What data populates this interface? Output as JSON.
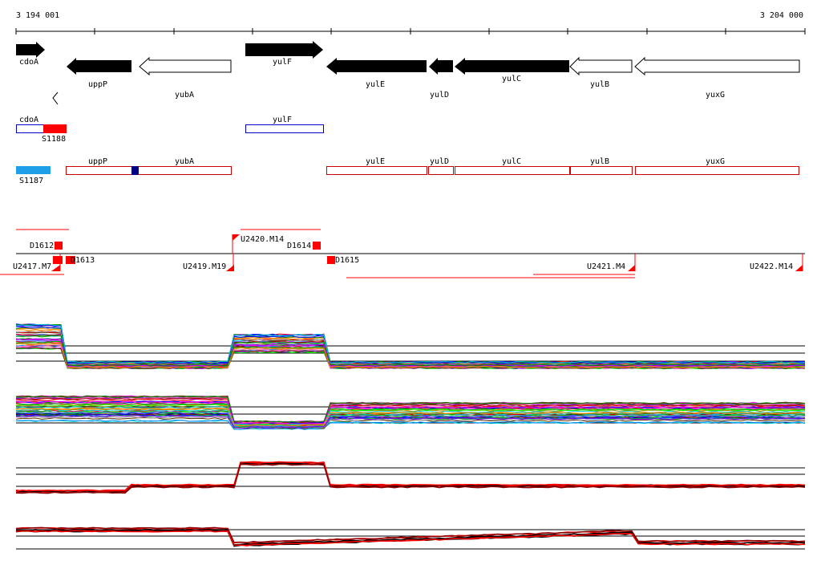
{
  "coordinates": {
    "start": "3 194 001",
    "end": "3 204 000"
  },
  "colors": {
    "gene_fill": "#000000",
    "red": "#ff0000",
    "dark_red": "#cc0000",
    "blue": "#0000cc",
    "navy": "#000080",
    "sky": "#1e9fe8"
  },
  "genes": {
    "cdoA": "cdoA",
    "uppP": "uppP",
    "yubA": "yubA",
    "yulF": "yulF",
    "yulE": "yulE",
    "yulD": "yulD",
    "yulC": "yulC",
    "yulB": "yulB",
    "yuxG": "yuxG"
  },
  "transcripts": {
    "cdoA": "cdoA",
    "S1188": "S1188",
    "yulF": "yulF",
    "S1187": "S1187",
    "uppP": "uppP",
    "yubA": "yubA",
    "yulE": "yulE",
    "yulD": "yulD",
    "yulC": "yulC",
    "yulB": "yulB",
    "yuxG": "yuxG"
  },
  "regulatory": {
    "D1612": "D1612",
    "D1613": "D1613",
    "D1614": "D1614",
    "D1615": "D1615",
    "U2417": "U2417.M7",
    "U2419": "U2419.M19",
    "U2420": "U2420.M14",
    "U2421": "U2421.M4",
    "U2422": "U2422.M14"
  }
}
